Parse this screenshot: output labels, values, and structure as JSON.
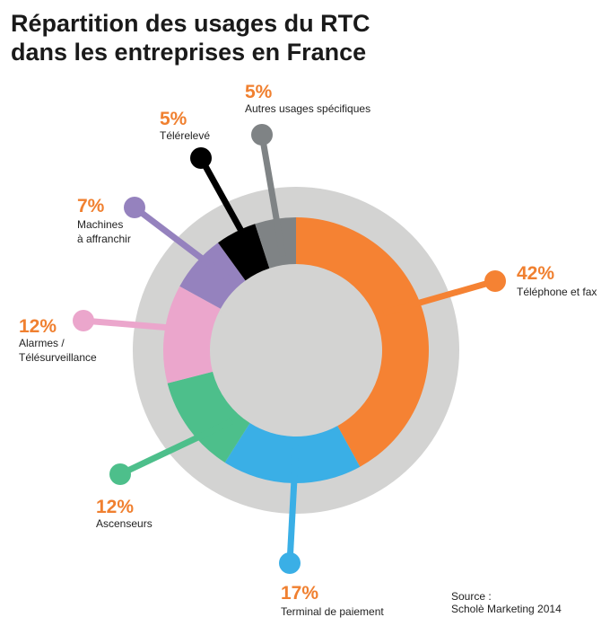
{
  "title": {
    "line1": "Répartition des usages du RTC",
    "line2": "dans les entreprises en France"
  },
  "source": {
    "line1": "Source :",
    "line2": "Scholè Marketing 2014"
  },
  "colors": {
    "ring": "#d3d3d2",
    "center": "#d3d3d2",
    "pct_text": "#f08030",
    "label_text": "#222222"
  },
  "chart_data": {
    "type": "pie",
    "style": "donut",
    "title": "Répartition des usages du RTC dans les entreprises en France",
    "unit": "%",
    "slices": [
      {
        "label": "Téléphone et fax",
        "pct_label": "42%",
        "value": 42,
        "color": "#f58233"
      },
      {
        "label": "Terminal de paiement",
        "pct_label": "17%",
        "value": 17,
        "color": "#3aafe6"
      },
      {
        "label": "Ascenseurs",
        "pct_label": "12%",
        "value": 12,
        "color": "#4dbf8b"
      },
      {
        "label": "Alarmes / Télésurveillance",
        "label_lines": [
          "Alarmes /",
          "Télésurveillance"
        ],
        "pct_label": "12%",
        "value": 12,
        "color": "#eba6cc"
      },
      {
        "label": "Machines à affranchir",
        "label_lines": [
          "Machines",
          "à affranchir"
        ],
        "pct_label": "7%",
        "value": 7,
        "color": "#9582be"
      },
      {
        "label": "Télérelevé",
        "pct_label": "5%",
        "value": 5,
        "color": "#000000"
      },
      {
        "label": "Autres usages spécifiques",
        "pct_label": "5%",
        "value": 5,
        "color": "#7f8385"
      }
    ],
    "legend": "none",
    "grid": false
  }
}
